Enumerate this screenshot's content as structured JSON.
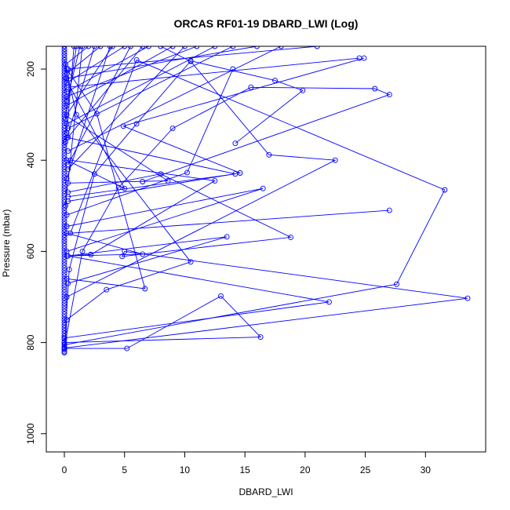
{
  "chart_data": {
    "type": "line",
    "title": "ORCAS RF01-19 DBARD_LWI (Log)",
    "xlabel": "DBARD_LWI",
    "ylabel": "Pressure (mbar)",
    "xlim": [
      -1.5,
      35
    ],
    "ylim": [
      1040,
      150
    ],
    "y_reversed": true,
    "x_ticks": [
      "0",
      "5",
      "10",
      "15",
      "20",
      "25",
      "30"
    ],
    "y_ticks": [
      "200",
      "400",
      "600",
      "800",
      "1000"
    ],
    "grid": false,
    "legend": "none",
    "series_color": "#0000ff",
    "series": [
      {
        "values": [
          [
            0,
            820
          ],
          [
            0.4,
            640
          ],
          [
            2.5,
            430
          ],
          [
            6,
            320
          ],
          [
            10.5,
            182
          ],
          [
            17.5,
            225
          ],
          [
            19.8,
            247
          ],
          [
            14.2,
            363
          ]
        ]
      },
      {
        "values": [
          [
            0,
            810
          ],
          [
            1.5,
            600
          ],
          [
            4.5,
            460
          ],
          [
            9,
            330
          ],
          [
            15.5,
            240
          ],
          [
            25.8,
            243
          ],
          [
            27,
            256
          ],
          [
            6.5,
            447
          ]
        ]
      },
      {
        "values": [
          [
            0,
            800
          ],
          [
            16.3,
            788
          ],
          [
            13,
            698
          ],
          [
            5.2,
            813
          ],
          [
            0,
            813
          ]
        ]
      },
      {
        "values": [
          [
            0,
            805
          ],
          [
            27.6,
            672
          ],
          [
            31.6,
            465
          ],
          [
            6,
            180
          ],
          [
            0.5,
            560
          ],
          [
            27,
            510
          ]
        ]
      },
      {
        "values": [
          [
            0,
            812
          ],
          [
            33.5,
            703
          ],
          [
            5,
            600
          ],
          [
            4.8,
            611
          ],
          [
            18.8,
            569
          ],
          [
            8,
            430
          ],
          [
            0.3,
            470
          ]
        ]
      },
      {
        "values": [
          [
            0,
            790
          ],
          [
            22,
            711
          ],
          [
            0.3,
            610
          ],
          [
            13.5,
            568
          ],
          [
            0.3,
            670
          ]
        ]
      },
      {
        "values": [
          [
            0.2,
            660
          ],
          [
            6.7,
            682
          ],
          [
            2.7,
            298
          ],
          [
            0.2,
            200
          ]
        ]
      },
      {
        "values": [
          [
            0.2,
            750
          ],
          [
            3.5,
            684
          ],
          [
            10.5,
            623
          ],
          [
            1,
            300
          ],
          [
            0,
            180
          ]
        ]
      },
      {
        "values": [
          [
            0.2,
            600
          ],
          [
            16.5,
            462
          ],
          [
            0.2,
            545
          ]
        ]
      },
      {
        "values": [
          [
            0.3,
            490
          ],
          [
            14.6,
            428
          ],
          [
            4.9,
            325
          ],
          [
            24.9,
            176
          ]
        ]
      },
      {
        "values": [
          [
            0.2,
            560
          ],
          [
            6.5,
            606
          ],
          [
            0.2,
            610
          ],
          [
            2.2,
            607
          ],
          [
            12.5,
            445
          ],
          [
            0.5,
            400
          ]
        ]
      },
      {
        "values": [
          [
            0.2,
            700
          ],
          [
            22.5,
            400
          ],
          [
            17,
            388
          ],
          [
            10.5,
            183
          ],
          [
            8,
            150
          ]
        ]
      },
      {
        "values": [
          [
            0.3,
            450
          ],
          [
            8.6,
            445
          ],
          [
            0,
            300
          ]
        ]
      },
      {
        "values": [
          [
            0.2,
            520
          ],
          [
            10.2,
            427
          ],
          [
            14,
            200
          ]
        ]
      },
      {
        "values": [
          [
            0.2,
            400
          ],
          [
            5,
            462
          ],
          [
            0.1,
            220
          ]
        ]
      },
      {
        "values": [
          [
            0.3,
            480
          ],
          [
            14.2,
            430
          ],
          [
            0.2,
            350
          ]
        ]
      },
      {
        "values": [
          [
            0.3,
            380
          ],
          [
            18,
            150
          ]
        ]
      },
      {
        "values": [
          [
            0.3,
            330
          ],
          [
            14,
            150
          ]
        ]
      },
      {
        "values": [
          [
            0.2,
            280
          ],
          [
            9,
            150
          ]
        ]
      },
      {
        "values": [
          [
            0.2,
            250
          ],
          [
            7,
            150
          ]
        ]
      },
      {
        "values": [
          [
            0.2,
            230
          ],
          [
            5,
            150
          ]
        ]
      },
      {
        "values": [
          [
            0.2,
            210
          ],
          [
            3,
            150
          ]
        ]
      },
      {
        "values": [
          [
            0.1,
            190
          ],
          [
            2,
            150
          ]
        ]
      },
      {
        "values": [
          [
            0.2,
            300
          ],
          [
            4,
            150
          ]
        ]
      },
      {
        "values": [
          [
            0.3,
            350
          ],
          [
            6.5,
            150
          ]
        ]
      },
      {
        "values": [
          [
            0.2,
            260
          ],
          [
            11,
            150
          ]
        ]
      },
      {
        "values": [
          [
            0.2,
            320
          ],
          [
            12.5,
            150
          ]
        ]
      },
      {
        "values": [
          [
            0.3,
            420
          ],
          [
            10,
            150
          ]
        ]
      },
      {
        "values": [
          [
            0.2,
            240
          ],
          [
            24.5,
            176
          ]
        ]
      },
      {
        "values": [
          [
            0.2,
            270
          ],
          [
            1.3,
            150
          ]
        ]
      },
      {
        "values": [
          [
            0.1,
            360
          ],
          [
            2.5,
            150
          ]
        ]
      },
      {
        "values": [
          [
            0.1,
            310
          ],
          [
            1,
            150
          ]
        ]
      },
      {
        "values": [
          [
            0.2,
            440
          ],
          [
            3.8,
            150
          ]
        ]
      },
      {
        "values": [
          [
            0.2,
            220
          ],
          [
            16,
            150
          ]
        ]
      },
      {
        "values": [
          [
            0.3,
            200
          ],
          [
            21,
            150
          ]
        ]
      },
      {
        "values": [
          [
            0.1,
            500
          ],
          [
            1.5,
            150
          ]
        ]
      },
      {
        "values": [
          [
            0.3,
            410
          ],
          [
            5.5,
            150
          ]
        ]
      },
      {
        "values": [
          [
            0.2,
            340
          ],
          [
            0.8,
            150
          ]
        ]
      }
    ]
  }
}
